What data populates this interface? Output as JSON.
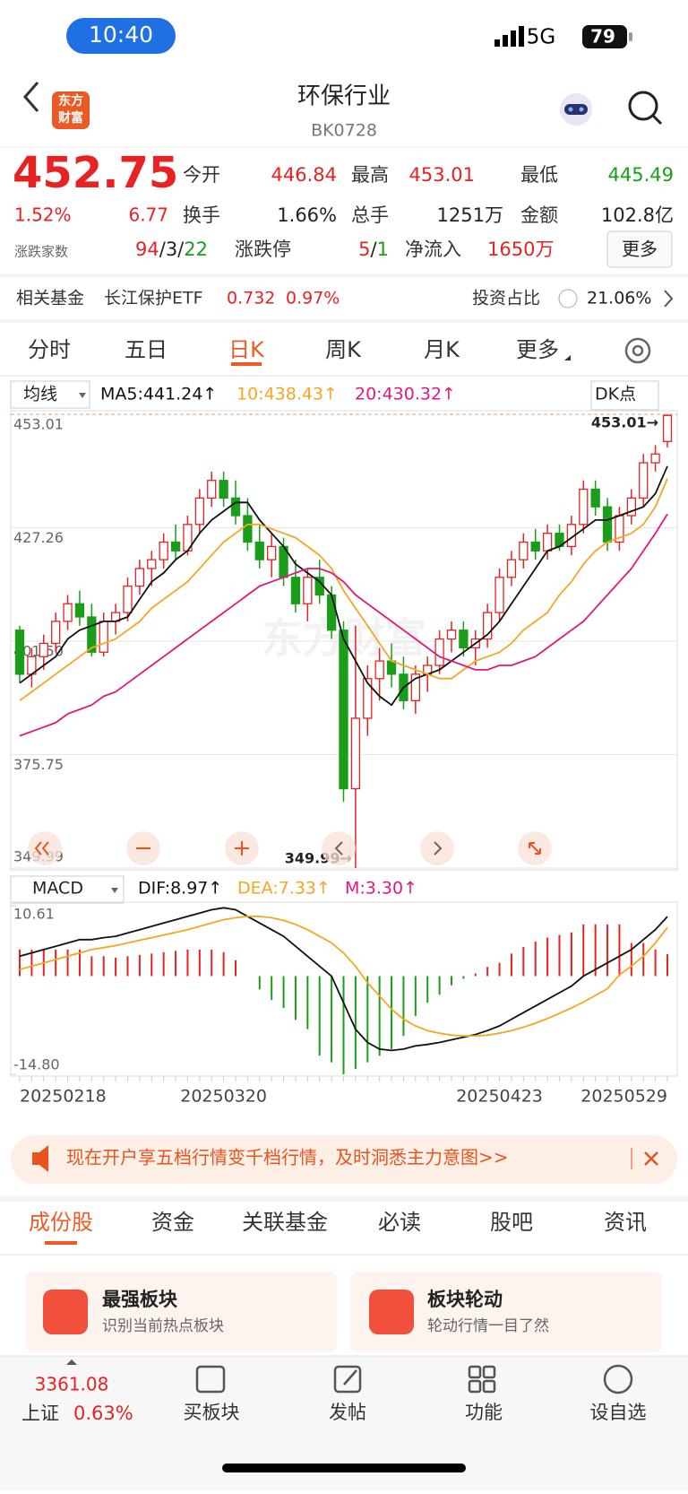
{
  "status_bar": {
    "time": "10:40",
    "network": "5G",
    "battery": "79"
  },
  "header": {
    "title": "环保行业",
    "code": "BK0728",
    "logo": [
      "东方",
      "财富"
    ]
  },
  "quote": {
    "price": "452.75",
    "change_pct": "1.52%",
    "change": "6.77",
    "fields": [
      {
        "label": "今开",
        "value": "446.84"
      },
      {
        "label": "最高",
        "value": "453.01"
      },
      {
        "label": "最低",
        "value": "445.49"
      },
      {
        "label": "换手",
        "value": "1.66%"
      },
      {
        "label": "总手",
        "value": "1251万"
      },
      {
        "label": "金额",
        "value": "102.8亿"
      }
    ],
    "breadth_label": "涨跌家数",
    "breadth": [
      "94",
      "/3/",
      "22"
    ],
    "limit_label": "涨跌停",
    "limit": [
      "5",
      "/",
      "1"
    ],
    "inflow_label": "净流入",
    "inflow": "1650万",
    "more": "更多"
  },
  "fund": {
    "label": "相关基金",
    "name": "长江保护ETF",
    "price": "0.732",
    "pct": "0.97%",
    "ratio_label": "投资占比",
    "ratio": "21.06%"
  },
  "tabs": [
    "分时",
    "五日",
    "日K",
    "周K",
    "月K",
    "更多"
  ],
  "chart_data": [
    {
      "type": "candlestick",
      "ma_select": "均线",
      "legend": [
        "MA5:441.24↑",
        "10:438.43↑",
        "20:430.32↑"
      ],
      "dk": "DK点",
      "watermark": "东方财富",
      "ylim": [
        349.99,
        453.01
      ],
      "yticks": [
        453.01,
        427.26,
        {
          "value": 401.5,
          "label": "401.50"
        },
        375.75,
        349.99
      ],
      "high_label": "453.01→",
      "low_label": "349.99→",
      "up_color": "#e62222",
      "down_color": "#1a9e1a",
      "ma_colors": [
        "#111111",
        "#f5a623",
        "#e0197d"
      ],
      "ohlc": [
        [
          404,
          405,
          392,
          394
        ],
        [
          394,
          400,
          391,
          398
        ],
        [
          398,
          403,
          395,
          401
        ],
        [
          401,
          408,
          399,
          406
        ],
        [
          406,
          412,
          404,
          410
        ],
        [
          410,
          413,
          405,
          407
        ],
        [
          407,
          410,
          398,
          399
        ],
        [
          399,
          408,
          398,
          406
        ],
        [
          406,
          410,
          403,
          408
        ],
        [
          408,
          416,
          406,
          414
        ],
        [
          414,
          420,
          412,
          418
        ],
        [
          418,
          422,
          414,
          420
        ],
        [
          420,
          426,
          418,
          424
        ],
        [
          424,
          428,
          420,
          422
        ],
        [
          422,
          430,
          421,
          428
        ],
        [
          428,
          436,
          426,
          434
        ],
        [
          434,
          440,
          432,
          438
        ],
        [
          438,
          440,
          432,
          434
        ],
        [
          434,
          438,
          428,
          430
        ],
        [
          430,
          434,
          422,
          424
        ],
        [
          424,
          428,
          418,
          420
        ],
        [
          420,
          426,
          416,
          423
        ],
        [
          423,
          425,
          414,
          416
        ],
        [
          416,
          420,
          408,
          410
        ],
        [
          410,
          418,
          406,
          416
        ],
        [
          416,
          420,
          410,
          412
        ],
        [
          412,
          414,
          402,
          404
        ],
        [
          404,
          406,
          365,
          368
        ],
        [
          368,
          405,
          349.99,
          384
        ],
        [
          384,
          396,
          380,
          393
        ],
        [
          393,
          400,
          388,
          397
        ],
        [
          397,
          401,
          391,
          394
        ],
        [
          394,
          398,
          386,
          388
        ],
        [
          388,
          396,
          385,
          394
        ],
        [
          394,
          398,
          390,
          396
        ],
        [
          396,
          404,
          394,
          402
        ],
        [
          402,
          406,
          399,
          404
        ],
        [
          404,
          406,
          398,
          400
        ],
        [
          400,
          404,
          396,
          402
        ],
        [
          402,
          410,
          400,
          408
        ],
        [
          408,
          418,
          406,
          416
        ],
        [
          416,
          422,
          414,
          420
        ],
        [
          420,
          426,
          418,
          424
        ],
        [
          424,
          427,
          420,
          422
        ],
        [
          422,
          428,
          420,
          426
        ],
        [
          426,
          428,
          422,
          423
        ],
        [
          423,
          430,
          421,
          428
        ],
        [
          428,
          438,
          426,
          436
        ],
        [
          436,
          438,
          430,
          432
        ],
        [
          432,
          434,
          422,
          424
        ],
        [
          424,
          432,
          422,
          430
        ],
        [
          430,
          436,
          428,
          434
        ],
        [
          434,
          444,
          432,
          442
        ],
        [
          442,
          446,
          440,
          444
        ],
        [
          446.84,
          453.01,
          445.49,
          452.75
        ]
      ],
      "ma5": [
        392,
        394,
        396,
        398,
        402,
        404,
        405,
        406,
        406,
        407,
        411,
        415,
        417,
        420,
        422,
        426,
        429,
        431,
        433,
        433,
        429,
        426,
        423,
        419,
        417,
        415,
        412,
        402,
        397,
        392,
        389,
        387,
        391,
        393,
        394,
        395,
        397,
        399,
        401,
        403,
        406,
        410,
        414,
        418,
        422,
        423,
        425,
        427,
        429,
        429,
        430,
        431,
        432,
        435,
        441.24
      ],
      "ma10": [
        388,
        390,
        392,
        394,
        396,
        398,
        400,
        401,
        402,
        404,
        406,
        409,
        411,
        413,
        415,
        418,
        421,
        424,
        426,
        428,
        428,
        427,
        426,
        425,
        423,
        421,
        418,
        413,
        409,
        405,
        401,
        397,
        396,
        395,
        394,
        393,
        393,
        395,
        397,
        398,
        399,
        401,
        404,
        406,
        408,
        412,
        415,
        419,
        422,
        424,
        425,
        426,
        428,
        432,
        438.43
      ],
      "ma20": [
        380,
        381,
        382,
        383,
        385,
        386,
        387,
        389,
        390,
        392,
        394,
        396,
        398,
        400,
        402,
        404,
        406,
        408,
        410,
        412,
        414,
        415,
        416,
        417,
        418,
        418,
        417,
        415,
        412,
        410,
        408,
        406,
        404,
        402,
        400,
        398,
        397,
        396,
        395,
        395,
        396,
        396,
        397,
        398,
        400,
        402,
        404,
        406,
        409,
        412,
        415,
        418,
        422,
        426,
        430.32
      ]
    },
    {
      "type": "macd",
      "indicator": "MACD",
      "legend": [
        "DIF:8.97↑",
        "DEA:7.33↑",
        "M:3.30↑"
      ],
      "ylim": [
        -14.8,
        10.61
      ],
      "yticks": [
        10.61,
        {
          "value": -14.8,
          "label": "-14.80"
        }
      ],
      "colors": [
        "#111111",
        "#f5a623",
        "#e0197d"
      ],
      "up_color": "#e62222",
      "down_color": "#1a9e1a",
      "categories": [
        "20250218",
        null,
        null,
        null,
        null,
        null,
        null,
        null,
        null,
        null,
        null,
        null,
        null,
        null,
        null,
        null,
        null,
        "20250320",
        null,
        null,
        null,
        null,
        null,
        null,
        null,
        null,
        null,
        null,
        null,
        null,
        null,
        null,
        null,
        null,
        null,
        null,
        null,
        null,
        null,
        null,
        "20250423",
        null,
        null,
        null,
        null,
        null,
        null,
        null,
        null,
        null,
        null,
        null,
        null,
        null,
        "20250529"
      ],
      "dif": [
        3,
        3.5,
        4,
        4.5,
        5,
        5.5,
        5.5,
        5.8,
        6,
        6.5,
        7,
        7.5,
        8,
        8.5,
        9,
        9.5,
        10,
        10.3,
        10,
        9,
        8,
        7,
        6,
        4.5,
        3,
        1.5,
        0,
        -4,
        -8,
        -10,
        -11,
        -11.2,
        -11,
        -10.5,
        -10.3,
        -10,
        -9.6,
        -9.2,
        -8.8,
        -8.2,
        -7.5,
        -6.5,
        -5.5,
        -4.5,
        -3.5,
        -2.5,
        -1.5,
        0,
        1,
        2,
        3,
        4,
        5.5,
        7,
        8.97
      ],
      "dea": [
        1,
        1.5,
        2,
        2.5,
        3,
        3.5,
        4,
        4.3,
        4.6,
        5,
        5.4,
        5.8,
        6.2,
        6.6,
        7,
        7.5,
        8,
        8.5,
        8.8,
        9,
        9,
        8.8,
        8.4,
        7.8,
        7,
        6,
        5,
        3.5,
        1.5,
        -1,
        -3,
        -5,
        -6.5,
        -7.5,
        -8.2,
        -8.6,
        -8.9,
        -9,
        -9,
        -8.9,
        -8.6,
        -8.2,
        -7.7,
        -7.1,
        -6.4,
        -5.6,
        -4.8,
        -3.9,
        -2.9,
        -1.9,
        0.2,
        1.5,
        3,
        5,
        7.33
      ],
      "hist": [
        4,
        4,
        4,
        4,
        4,
        4,
        3,
        3,
        2.8,
        3,
        3.2,
        3.4,
        3.6,
        3.8,
        4,
        4,
        4,
        3.6,
        2.4,
        0,
        -2,
        -3.6,
        -4.8,
        -6.6,
        -8,
        -12,
        -13,
        -14.8,
        -14,
        -13,
        -12,
        -11,
        -9,
        -6,
        -4,
        -2.8,
        -1.4,
        -0.4,
        0.4,
        1.4,
        2,
        3.4,
        4.4,
        5.2,
        5.8,
        6.2,
        6.6,
        7.8,
        7.8,
        7.8,
        7.8,
        5,
        5,
        4,
        3.3
      ]
    }
  ],
  "banner": {
    "text": "现在开户享五档行情变千档行情，及时洞悉主力意图>>"
  },
  "tabs2": [
    "成份股",
    "资金",
    "关联基金",
    "必读",
    "股吧",
    "资讯"
  ],
  "cards": [
    {
      "title": "最强板块",
      "subtitle": "识别当前热点板块"
    },
    {
      "title": "板块轮动",
      "subtitle": "轮动行情一目了然"
    }
  ],
  "bottom_nav": {
    "index_value": "3361.08",
    "index_name": "上证",
    "index_pct": "0.63%",
    "items": [
      "买板块",
      "发帖",
      "功能",
      "设自选"
    ]
  }
}
